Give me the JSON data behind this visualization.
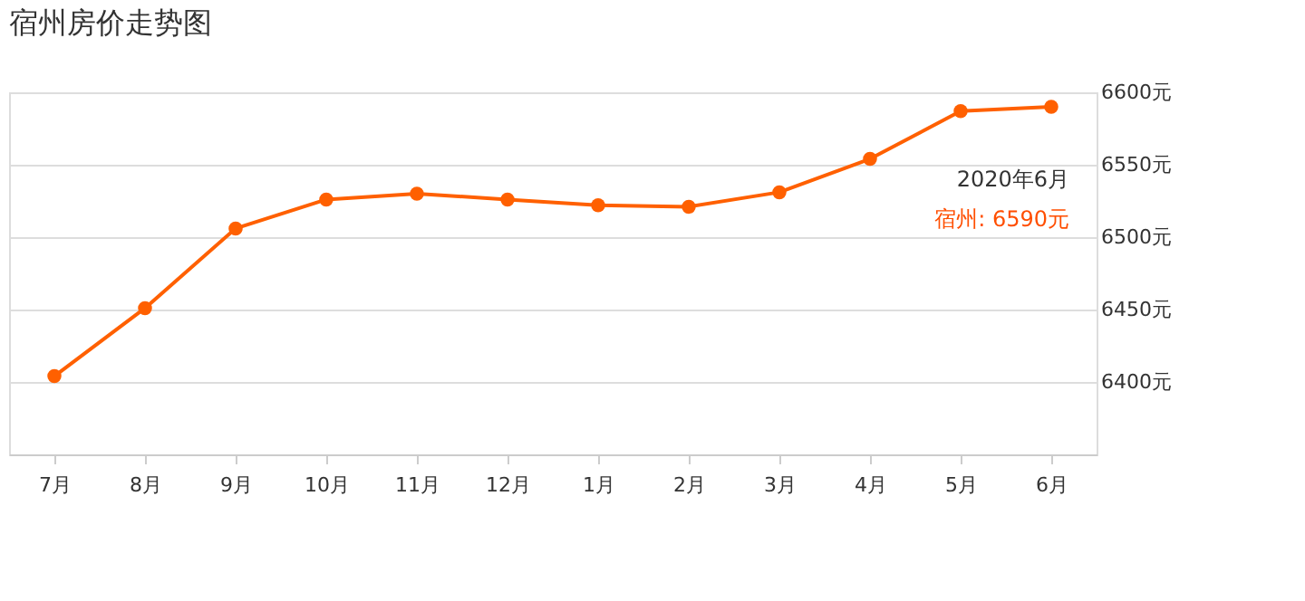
{
  "chart_data": {
    "type": "line",
    "title": "宿州房价走势图",
    "categories": [
      "7月",
      "8月",
      "9月",
      "10月",
      "11月",
      "12月",
      "1月",
      "2月",
      "3月",
      "4月",
      "5月",
      "6月"
    ],
    "series": [
      {
        "color": "#ff6000",
        "values": [
          6404,
          6451,
          6506,
          6526,
          6530,
          6526,
          6522,
          6521,
          6531,
          6554,
          6587,
          6590
        ]
      }
    ],
    "ylim": [
      6350,
      6600
    ],
    "yticks": [
      {
        "value": 6400,
        "label": "6400元"
      },
      {
        "value": 6450,
        "label": "6450元"
      },
      {
        "value": 6500,
        "label": "6500元"
      },
      {
        "value": 6550,
        "label": "6550元"
      },
      {
        "value": 6600,
        "label": "6600元"
      }
    ],
    "grid": "y",
    "marker": "circle",
    "line_style": "solid",
    "annotations": [
      "2020年6月",
      "宿州:  6590元"
    ]
  }
}
